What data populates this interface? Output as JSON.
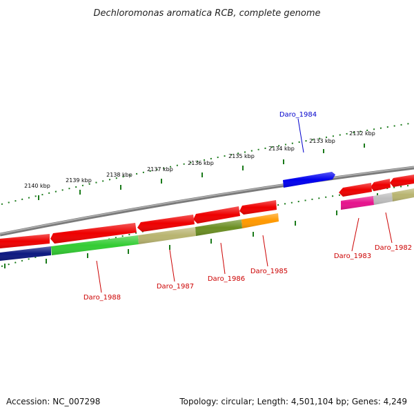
{
  "title": "Dechloromonas aromatica RCB, complete genome",
  "accession": "Accession: NC_007298",
  "summary": "Topology: circular; Length: 4,501,104 bp; Genes: 4,249",
  "colors": {
    "backbone": "#808080",
    "tick": "#1a7a1a",
    "label_red": "#cc0000",
    "label_blue": "#0000cc",
    "gene_red": "#ee0000",
    "gene_blue": "#0000ee"
  },
  "scale_ticks": [
    "2132 kbp",
    "2133 kbp",
    "2134 kbp",
    "2135 kbp",
    "2136 kbp",
    "2137 kbp",
    "2138 kbp",
    "2139 kbp",
    "2140 kbp"
  ],
  "gene_labels": [
    {
      "text": "Daro_1984",
      "color": "#0000cc"
    },
    {
      "text": "Daro_1988",
      "color": "#cc0000"
    },
    {
      "text": "Daro_1987",
      "color": "#cc0000"
    },
    {
      "text": "Daro_1986",
      "color": "#cc0000"
    },
    {
      "text": "Daro_1985",
      "color": "#cc0000"
    },
    {
      "text": "Daro_1983",
      "color": "#cc0000"
    },
    {
      "text": "Daro_1982",
      "color": "#cc0000"
    }
  ]
}
